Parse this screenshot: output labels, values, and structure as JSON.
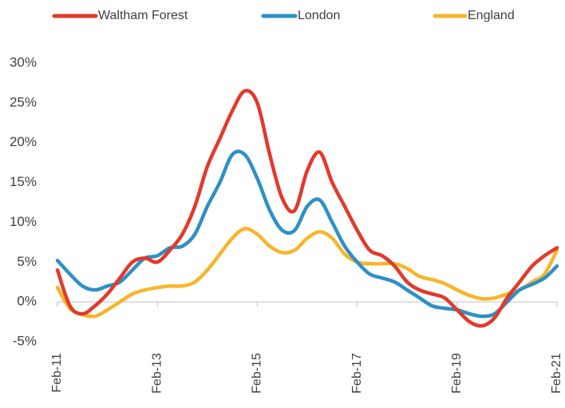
{
  "chart_data": {
    "type": "line",
    "categories": [
      "Feb-11",
      null,
      null,
      null,
      null,
      null,
      null,
      null,
      "Feb-13",
      null,
      null,
      null,
      null,
      null,
      null,
      null,
      "Feb-15",
      null,
      null,
      null,
      null,
      null,
      null,
      null,
      "Feb-17",
      null,
      null,
      null,
      null,
      null,
      null,
      null,
      "Feb-19",
      null,
      null,
      null,
      null,
      null,
      null,
      null,
      "Feb-21"
    ],
    "series": [
      {
        "name": "Waltham Forest",
        "color": "#e2392b",
        "values": [
          4.0,
          -0.5,
          -1.5,
          -0.5,
          1.0,
          3.0,
          5.0,
          5.5,
          5.0,
          6.5,
          8.5,
          12,
          17,
          20.5,
          24,
          26.5,
          25,
          18.5,
          13,
          11.5,
          16.5,
          18.8,
          15,
          12,
          9,
          6.5,
          5.8,
          4.5,
          2.5,
          1.5,
          1.0,
          0.5,
          -1.0,
          -2.5,
          -3.0,
          -2.0,
          0.5,
          2.5,
          4.5,
          5.8,
          6.8
        ]
      },
      {
        "name": "London",
        "color": "#2e90c6",
        "values": [
          5.2,
          3.5,
          2.0,
          1.5,
          2.0,
          2.5,
          4.0,
          5.5,
          5.8,
          6.8,
          7.0,
          8.5,
          12,
          15,
          18.5,
          18.5,
          15.5,
          11.5,
          9,
          9,
          12,
          12.8,
          10,
          7,
          5,
          3.5,
          3.0,
          2.5,
          1.5,
          0.5,
          -0.5,
          -0.8,
          -1.0,
          -1.5,
          -1.8,
          -1.5,
          0,
          1.5,
          2.2,
          3.0,
          4.5
        ]
      },
      {
        "name": "England",
        "color": "#f6b62b",
        "values": [
          1.8,
          -0.8,
          -1.6,
          -1.8,
          -1.0,
          0,
          1.0,
          1.5,
          1.8,
          2.0,
          2.0,
          2.5,
          4.0,
          6.0,
          8.0,
          9.2,
          8.5,
          7.0,
          6.2,
          6.5,
          8.0,
          8.8,
          8.0,
          6.0,
          5.0,
          4.8,
          4.8,
          4.8,
          4.2,
          3.2,
          2.8,
          2.3,
          1.5,
          0.8,
          0.4,
          0.5,
          1.0,
          1.5,
          2.5,
          3.5,
          6.5
        ]
      }
    ],
    "ylim": [
      -5,
      30
    ],
    "yticks": [
      {
        "value": -5,
        "label": "-5%"
      },
      {
        "value": 0,
        "label": "0%"
      },
      {
        "value": 5,
        "label": "5%"
      },
      {
        "value": 10,
        "label": "10%"
      },
      {
        "value": 15,
        "label": "15%"
      },
      {
        "value": 20,
        "label": "20%"
      },
      {
        "value": 25,
        "label": "25%"
      },
      {
        "value": 30,
        "label": "30%"
      }
    ],
    "grid": false,
    "legend": "top"
  }
}
